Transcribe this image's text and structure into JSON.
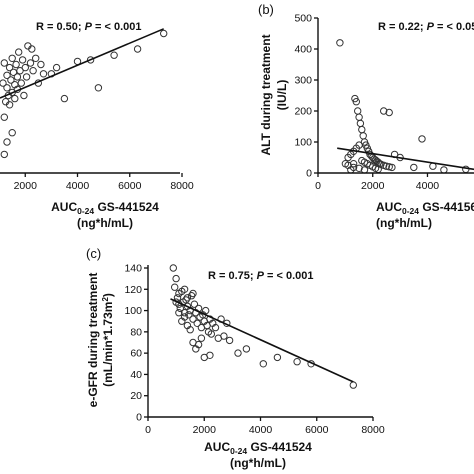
{
  "chart_data": [
    {
      "type": "scatter",
      "panel_label": "",
      "stat_text": "R = 0.50; P = < 0.001",
      "stat_parts": {
        "r": "R = 0.50; ",
        "p": "P",
        "rest": " = < 0.001"
      },
      "xlabel_main": "AUC",
      "xlabel_sub": "0-24",
      "xlabel_rest": " GS-441524",
      "xunit": "(ng*h/mL)",
      "ylabel": "",
      "xlim": [
        0,
        8000
      ],
      "xticks": [
        2000,
        4000,
        6000,
        8000
      ],
      "ylim": [
        0,
        100
      ],
      "yticks": [],
      "fit_line": [
        [
          0,
          41
        ],
        [
          7300,
          93
        ]
      ],
      "points": [
        [
          700,
          42
        ],
        [
          800,
          54
        ],
        [
          850,
          48
        ],
        [
          900,
          58
        ],
        [
          950,
          38
        ],
        [
          1000,
          47
        ],
        [
          1000,
          62
        ],
        [
          1050,
          66
        ],
        [
          1100,
          40
        ],
        [
          1100,
          52
        ],
        [
          1150,
          58
        ],
        [
          1200,
          71
        ],
        [
          1200,
          36
        ],
        [
          1250,
          46
        ],
        [
          1300,
          55
        ],
        [
          1300,
          63
        ],
        [
          1350,
          50
        ],
        [
          1400,
          68
        ],
        [
          1400,
          44
        ],
        [
          1450,
          60
        ],
        [
          1500,
          52
        ],
        [
          1500,
          74
        ],
        [
          1550,
          65
        ],
        [
          1600,
          57
        ],
        [
          1600,
          48
        ],
        [
          1650,
          70
        ],
        [
          1700,
          62
        ],
        [
          1700,
          54
        ],
        [
          1750,
          78
        ],
        [
          1800,
          66
        ],
        [
          1850,
          58
        ],
        [
          1900,
          73
        ],
        [
          1950,
          50
        ],
        [
          2000,
          68
        ],
        [
          2050,
          62
        ],
        [
          2100,
          82
        ],
        [
          2200,
          71
        ],
        [
          2250,
          80
        ],
        [
          2300,
          66
        ],
        [
          2400,
          74
        ],
        [
          2500,
          58
        ],
        [
          2600,
          70
        ],
        [
          2700,
          64
        ],
        [
          3000,
          64
        ],
        [
          3200,
          68
        ],
        [
          3500,
          48
        ],
        [
          4000,
          72
        ],
        [
          4500,
          73
        ],
        [
          4800,
          55
        ],
        [
          5400,
          76
        ],
        [
          6300,
          80
        ],
        [
          7300,
          90
        ],
        [
          900,
          28
        ],
        [
          1100,
          22
        ],
        [
          1300,
          20
        ],
        [
          1500,
          26
        ],
        [
          700,
          14
        ],
        [
          800,
          18
        ],
        [
          950,
          10
        ],
        [
          1200,
          12
        ],
        [
          700,
          2
        ]
      ]
    },
    {
      "type": "scatter",
      "panel_label": "(b)",
      "stat_text": "R = 0.22; P = < 0.05",
      "stat_parts": {
        "r": "R = 0.22; ",
        "p": "P",
        "rest": " = < 0.05"
      },
      "xlabel_main": "AUC",
      "xlabel_sub": "0-24",
      "xlabel_rest": " GS-44156",
      "xunit": "(ng*h/mL)",
      "ylabel": "ALT during treatment (IU/L)",
      "xlim": [
        0,
        5700
      ],
      "xticks": [
        0,
        2000,
        4000
      ],
      "ylim": [
        0,
        500
      ],
      "yticks": [
        0,
        100,
        200,
        300,
        400,
        500
      ],
      "fit_line": [
        [
          700,
          80
        ],
        [
          5700,
          12
        ]
      ],
      "points": [
        [
          800,
          420
        ],
        [
          1200,
          10
        ],
        [
          1300,
          30
        ],
        [
          1350,
          240
        ],
        [
          1400,
          230
        ],
        [
          1450,
          200
        ],
        [
          1500,
          180
        ],
        [
          1550,
          160
        ],
        [
          1600,
          140
        ],
        [
          1650,
          120
        ],
        [
          1700,
          100
        ],
        [
          1750,
          90
        ],
        [
          1800,
          80
        ],
        [
          1850,
          70
        ],
        [
          1900,
          60
        ],
        [
          1950,
          55
        ],
        [
          2000,
          50
        ],
        [
          2050,
          45
        ],
        [
          2100,
          42
        ],
        [
          2150,
          38
        ],
        [
          2200,
          35
        ],
        [
          2250,
          30
        ],
        [
          2300,
          28
        ],
        [
          2400,
          25
        ],
        [
          2500,
          22
        ],
        [
          2600,
          20
        ],
        [
          2700,
          18
        ],
        [
          1100,
          50
        ],
        [
          1200,
          60
        ],
        [
          1300,
          70
        ],
        [
          1400,
          80
        ],
        [
          1500,
          90
        ],
        [
          1600,
          40
        ],
        [
          1700,
          35
        ],
        [
          1800,
          30
        ],
        [
          1900,
          25
        ],
        [
          2000,
          20
        ],
        [
          2100,
          15
        ],
        [
          2200,
          12
        ],
        [
          1000,
          30
        ],
        [
          1100,
          25
        ],
        [
          1300,
          18
        ],
        [
          1500,
          15
        ],
        [
          1700,
          10
        ],
        [
          2400,
          200
        ],
        [
          2600,
          195
        ],
        [
          2800,
          60
        ],
        [
          3000,
          50
        ],
        [
          3500,
          18
        ],
        [
          3800,
          110
        ],
        [
          4200,
          22
        ],
        [
          4600,
          10
        ],
        [
          5400,
          12
        ]
      ]
    },
    {
      "type": "scatter",
      "panel_label": "(c)",
      "stat_text": "R = 0.75; P = < 0.001",
      "stat_parts": {
        "r": "R = 0.75; ",
        "p": "P",
        "rest": " = < 0.001"
      },
      "xlabel_main": "AUC",
      "xlabel_sub": "0-24",
      "xlabel_rest": " GS-441524",
      "xunit": "(ng*h/mL)",
      "ylabel": "e-GFR during treatment (mL/min*1.73m²)",
      "xlim": [
        0,
        8000
      ],
      "xticks": [
        0,
        2000,
        4000,
        6000,
        8000
      ],
      "ylim": [
        0,
        140
      ],
      "yticks": [
        0,
        20,
        40,
        60,
        80,
        100,
        120,
        140
      ],
      "fit_line": [
        [
          800,
          111
        ],
        [
          7300,
          33
        ]
      ],
      "points": [
        [
          900,
          140
        ],
        [
          950,
          122
        ],
        [
          1000,
          130
        ],
        [
          1050,
          112
        ],
        [
          1100,
          106
        ],
        [
          1150,
          102
        ],
        [
          1200,
          118
        ],
        [
          1250,
          108
        ],
        [
          1300,
          98
        ],
        [
          1350,
          110
        ],
        [
          1400,
          104
        ],
        [
          1450,
          96
        ],
        [
          1500,
          100
        ],
        [
          1550,
          114
        ],
        [
          1600,
          92
        ],
        [
          1650,
          106
        ],
        [
          1700,
          98
        ],
        [
          1750,
          88
        ],
        [
          1800,
          102
        ],
        [
          1850,
          94
        ],
        [
          1900,
          84
        ],
        [
          1950,
          96
        ],
        [
          2000,
          90
        ],
        [
          2050,
          100
        ],
        [
          2100,
          86
        ],
        [
          2150,
          80
        ],
        [
          2200,
          92
        ],
        [
          2250,
          78
        ],
        [
          2300,
          88
        ],
        [
          2400,
          84
        ],
        [
          2500,
          74
        ],
        [
          2600,
          92
        ],
        [
          2700,
          76
        ],
        [
          2800,
          88
        ],
        [
          1100,
          98
        ],
        [
          1200,
          90
        ],
        [
          1300,
          94
        ],
        [
          1400,
          86
        ],
        [
          1500,
          82
        ],
        [
          1600,
          70
        ],
        [
          1700,
          64
        ],
        [
          1800,
          68
        ],
        [
          1900,
          74
        ],
        [
          2000,
          56
        ],
        [
          1000,
          108
        ],
        [
          1100,
          116
        ],
        [
          1300,
          120
        ],
        [
          1400,
          112
        ],
        [
          1600,
          116
        ],
        [
          2200,
          58
        ],
        [
          2900,
          72
        ],
        [
          3200,
          60
        ],
        [
          3500,
          64
        ],
        [
          4100,
          50
        ],
        [
          4600,
          56
        ],
        [
          5300,
          52
        ],
        [
          5800,
          50
        ],
        [
          7300,
          30
        ]
      ]
    }
  ]
}
